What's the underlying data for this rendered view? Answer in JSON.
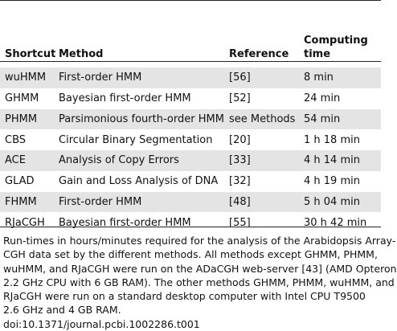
{
  "table": {
    "headers": [
      "Shortcut",
      "Method",
      "Reference",
      "Computing\ntime"
    ],
    "rows": [
      [
        "wuHMM",
        "First-order HMM",
        "[56]",
        "8 min"
      ],
      [
        "GHMM",
        "Bayesian first-order HMM",
        "[52]",
        "24 min"
      ],
      [
        "PHMM",
        "Parsimonious fourth-order HMM",
        "see Methods",
        "54 min"
      ],
      [
        "CBS",
        "Circular Binary Segmentation",
        "[20]",
        "1 h 18 min"
      ],
      [
        "ACE",
        "Analysis of Copy Errors",
        "[33]",
        "4 h 14 min"
      ],
      [
        "GLAD",
        "Gain and Loss Analysis of DNA",
        "[32]",
        "4 h 19 min"
      ],
      [
        "FHMM",
        "First-order HMM",
        "[48]",
        "5 h 04 min"
      ],
      [
        "RJaCGH",
        "Bayesian first-order HMM",
        "[55]",
        "30 h 42 min"
      ]
    ]
  },
  "footnote": {
    "lines": [
      "Run-times in hours/minutes required for the analysis of the Arabidopsis Array-",
      "CGH data set by the different methods. All methods except GHMM, PHMM,",
      "wuHMM, and RJaCGH were run on the ADaCGH web-server [43] (AMD Opteron",
      "2.2 GHz CPU with 6 GB RAM). The other methods GHMM, PHMM, wuHMM, and",
      "RJaCGH were run on a standard desktop computer with Intel CPU T9500",
      "2.6 GHz and 4 GB RAM.",
      "doi:10.1371/journal.pcbi.1002286.t001"
    ]
  }
}
